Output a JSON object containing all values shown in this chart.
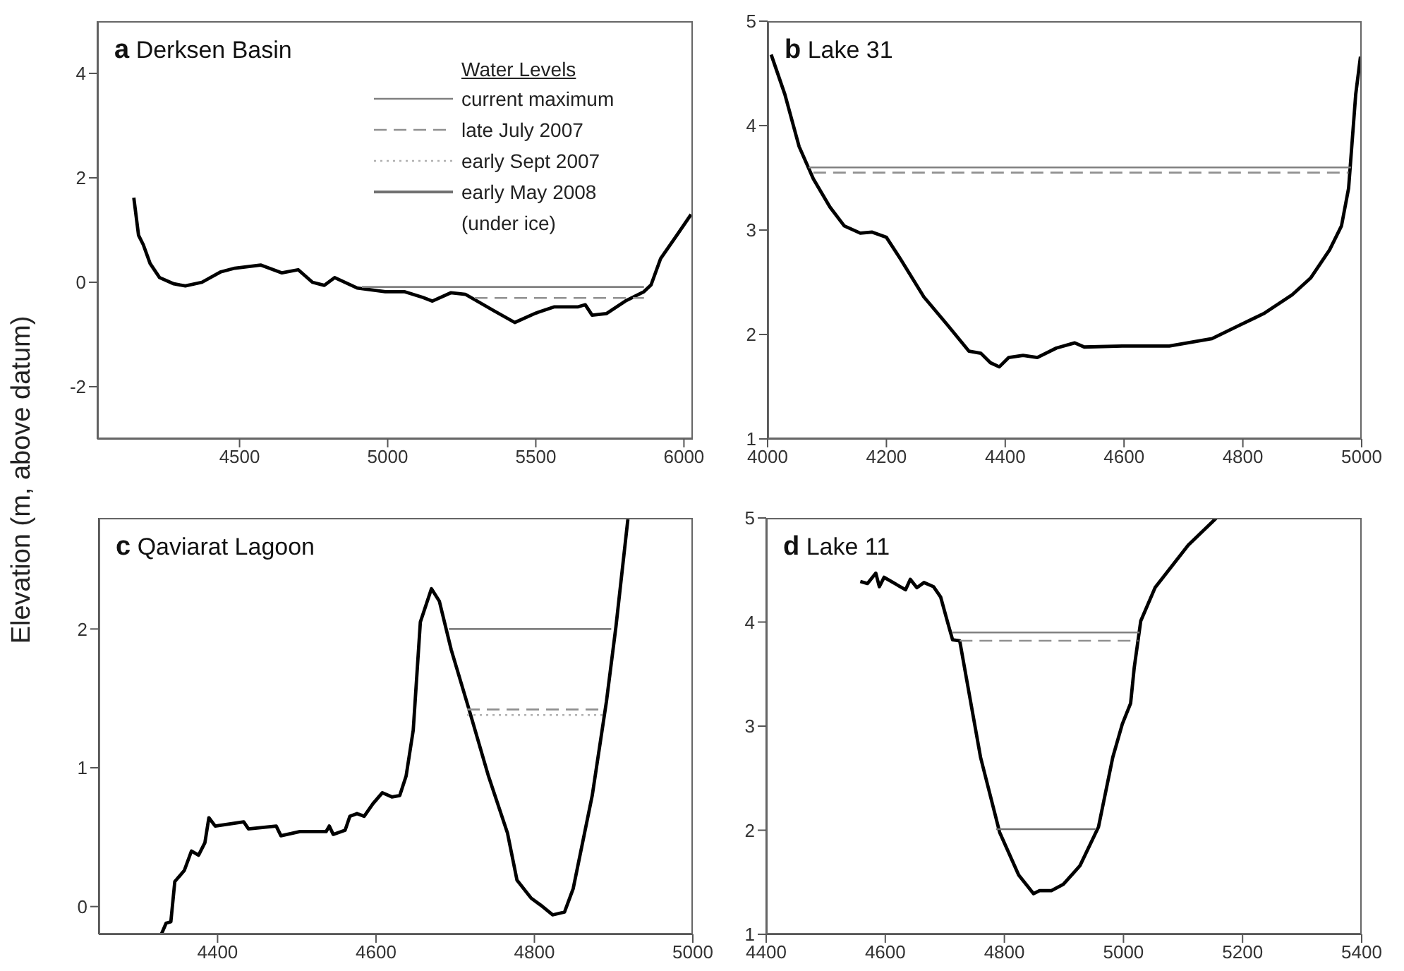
{
  "chart_data": [
    {
      "type": "line",
      "title": "a Derksen Basin",
      "ylabel": "Elevation (m, above datum)",
      "legend_title": "Water Levels",
      "legend": "top right",
      "xlim": [
        4020,
        6030
      ],
      "xticks": [
        4500,
        5000,
        5500,
        6000
      ],
      "ylim": [
        -3,
        5
      ],
      "yticks": [
        -2,
        0,
        2,
        4
      ],
      "series": [
        {
          "color": "#000000",
          "line_style": "solid",
          "x": [
            4143,
            4159,
            4175,
            4198,
            4230,
            4278,
            4317,
            4373,
            4437,
            4484,
            4571,
            4643,
            4698,
            4746,
            4786,
            4821,
            4897,
            4992,
            5056,
            5119,
            5151,
            5214,
            5262,
            5357,
            5429,
            5500,
            5563,
            5643,
            5667,
            5690,
            5738,
            5802,
            5865,
            5889,
            5921,
            5976,
            6024
          ],
          "values": [
            1.62,
            0.9,
            0.72,
            0.36,
            0.09,
            -0.03,
            -0.07,
            0,
            0.2,
            0.27,
            0.33,
            0.18,
            0.24,
            0,
            -0.06,
            0.09,
            -0.11,
            -0.18,
            -0.18,
            -0.29,
            -0.36,
            -0.2,
            -0.23,
            -0.54,
            -0.77,
            -0.59,
            -0.47,
            -0.47,
            -0.43,
            -0.63,
            -0.6,
            -0.36,
            -0.18,
            -0.05,
            0.45,
            0.9,
            1.3
          ]
        },
        {
          "name": "current maximum",
          "color": "#808080",
          "line_style": "solid",
          "x": [
            4913,
            5865
          ],
          "values": [
            -0.09,
            -0.09
          ]
        },
        {
          "name": "late July 2007",
          "color": "#909090",
          "line_style": "dashed",
          "x": [
            5294,
            5865
          ],
          "values": [
            -0.3,
            -0.3
          ]
        },
        {
          "name": "early Sept 2007",
          "color": "#b0b0b0",
          "line_style": "dotted"
        },
        {
          "name": "early May 2008 (under ice)",
          "color": "#707070",
          "line_style": "solid"
        }
      ]
    },
    {
      "type": "line",
      "title": "b Lake 31",
      "xlim": [
        4000,
        5000
      ],
      "xticks": [
        4000,
        4200,
        4400,
        4600,
        4800,
        5000
      ],
      "ylim": [
        1,
        5
      ],
      "yticks": [
        1,
        2,
        3,
        4,
        5
      ],
      "series": [
        {
          "color": "#000000",
          "line_style": "solid",
          "x": [
            4006,
            4029,
            4053,
            4077,
            4105,
            4129,
            4156,
            4176,
            4200,
            4224,
            4263,
            4303,
            4339,
            4359,
            4375,
            4390,
            4406,
            4430,
            4454,
            4486,
            4517,
            4533,
            4597,
            4676,
            4748,
            4795,
            4835,
            4883,
            4914,
            4946,
            4966,
            4978,
            4990,
            4998
          ],
          "values": [
            4.68,
            4.3,
            3.8,
            3.49,
            3.22,
            3.04,
            2.97,
            2.98,
            2.93,
            2.72,
            2.36,
            2.09,
            1.84,
            1.82,
            1.73,
            1.69,
            1.78,
            1.8,
            1.78,
            1.87,
            1.92,
            1.88,
            1.89,
            1.89,
            1.96,
            2.09,
            2.2,
            2.38,
            2.54,
            2.81,
            3.04,
            3.4,
            4.3,
            4.66
          ]
        },
        {
          "color": "#808080",
          "line_style": "solid",
          "x": [
            4069,
            4982
          ],
          "values": [
            3.6,
            3.6
          ]
        },
        {
          "color": "#909090",
          "line_style": "dashed",
          "x": [
            4077,
            4978
          ],
          "values": [
            3.55,
            3.55
          ]
        }
      ]
    },
    {
      "type": "line",
      "title": "c Qaviarat Lagoon",
      "xlim": [
        4250,
        5000
      ],
      "xticks": [
        4400,
        4600,
        4800,
        5000
      ],
      "ylim": [
        -0.2,
        2.8
      ],
      "yticks": [
        0,
        1,
        2
      ],
      "series": [
        {
          "color": "#000000",
          "line_style": "solid",
          "x": [
            4329,
            4335,
            4341,
            4346,
            4358,
            4367,
            4376,
            4384,
            4389,
            4397,
            4433,
            4439,
            4474,
            4480,
            4504,
            4537,
            4541,
            4546,
            4561,
            4567,
            4576,
            4585,
            4596,
            4608,
            4620,
            4630,
            4638,
            4647,
            4656,
            4670,
            4680,
            4695,
            4718,
            4742,
            4766,
            4778,
            4796,
            4808,
            4823,
            4838,
            4849,
            4873,
            4891,
            4903,
            4918
          ],
          "values": [
            -0.2,
            -0.12,
            -0.11,
            0.18,
            0.26,
            0.4,
            0.37,
            0.46,
            0.64,
            0.58,
            0.61,
            0.56,
            0.58,
            0.51,
            0.54,
            0.54,
            0.58,
            0.52,
            0.55,
            0.65,
            0.67,
            0.65,
            0.74,
            0.82,
            0.79,
            0.8,
            0.94,
            1.27,
            2.05,
            2.29,
            2.2,
            1.85,
            1.41,
            0.94,
            0.53,
            0.19,
            0.06,
            0.01,
            -0.06,
            -0.04,
            0.13,
            0.8,
            1.48,
            2.02,
            2.79
          ]
        },
        {
          "color": "#808080",
          "line_style": "solid",
          "x": [
            4692,
            4897
          ],
          "values": [
            2.0,
            2.0
          ]
        },
        {
          "color": "#909090",
          "line_style": "dashed",
          "x": [
            4715,
            4888
          ],
          "values": [
            1.42,
            1.42
          ]
        },
        {
          "color": "#b0b0b0",
          "line_style": "dotted",
          "x": [
            4715,
            4888
          ],
          "values": [
            1.38,
            1.38
          ]
        }
      ]
    },
    {
      "type": "line",
      "title": "d Lake 11",
      "xlim": [
        4400,
        5400
      ],
      "xticks": [
        4400,
        4600,
        4800,
        5000,
        5200,
        5400
      ],
      "ylim": [
        1,
        5
      ],
      "yticks": [
        1,
        2,
        3,
        4,
        5
      ],
      "series": [
        {
          "color": "#000000",
          "line_style": "solid",
          "x": [
            4558,
            4570,
            4584,
            4590,
            4598,
            4634,
            4642,
            4653,
            4665,
            4681,
            4693,
            4705,
            4713,
            4725,
            4740,
            4760,
            4792,
            4824,
            4849,
            4859,
            4879,
            4899,
            4927,
            4958,
            4982,
            4998,
            5012,
            5018,
            5029,
            5053,
            5109,
            5156
          ],
          "values": [
            4.39,
            4.37,
            4.47,
            4.34,
            4.43,
            4.31,
            4.41,
            4.33,
            4.38,
            4.34,
            4.24,
            3.99,
            3.83,
            3.82,
            3.34,
            2.7,
            1.98,
            1.57,
            1.39,
            1.42,
            1.42,
            1.48,
            1.66,
            2.03,
            2.7,
            3.02,
            3.22,
            3.56,
            4.01,
            4.33,
            4.74,
            5.0
          ]
        },
        {
          "color": "#808080",
          "line_style": "solid",
          "x": [
            4713,
            5027
          ],
          "values": [
            3.9,
            3.9
          ]
        },
        {
          "color": "#909090",
          "line_style": "dashed",
          "x": [
            4725,
            5025
          ],
          "values": [
            3.82,
            3.82
          ]
        },
        {
          "color": "#707070",
          "line_style": "solid",
          "x": [
            4786,
            4953
          ],
          "values": [
            2.01,
            2.01
          ]
        }
      ]
    }
  ]
}
